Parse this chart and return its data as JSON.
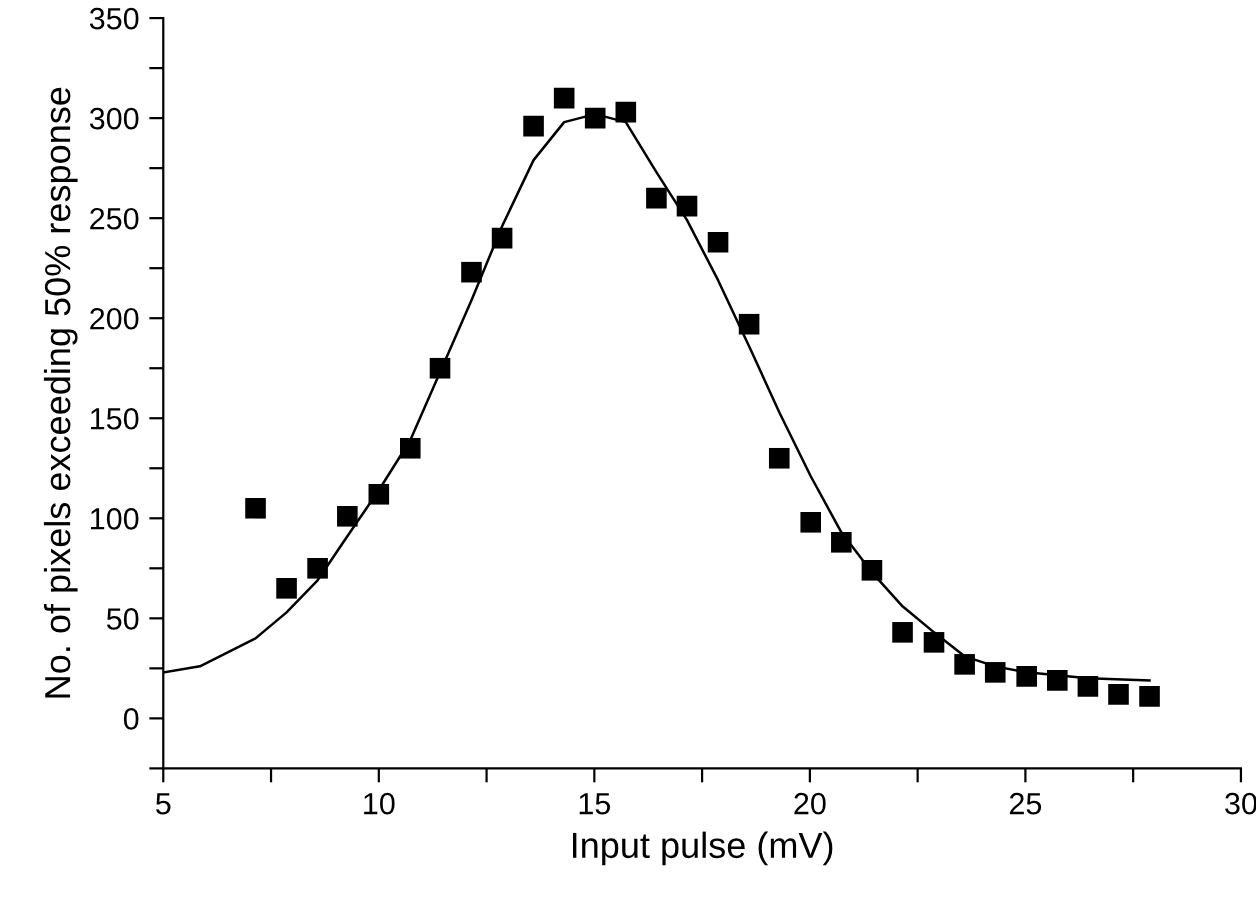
{
  "chart_data": {
    "type": "scatter",
    "xlabel": "Input pulse (mV)",
    "ylabel": "No. of pixels exceeding 50% response",
    "xlim": [
      5,
      30
    ],
    "ylim": [
      -25,
      350
    ],
    "xticks": [
      5,
      {
        "value": 7.5,
        "label": null
      },
      10,
      {
        "value": 12.5,
        "label": null
      },
      15,
      {
        "value": 17.5,
        "label": null
      },
      20,
      {
        "value": 22.5,
        "label": null
      },
      25,
      {
        "value": 27.5,
        "label": null
      },
      30
    ],
    "yticks": [
      {
        "value": -25,
        "label": null
      },
      0,
      {
        "value": 25,
        "label": null
      },
      50,
      {
        "value": 75,
        "label": null
      },
      100,
      {
        "value": 125,
        "label": null
      },
      150,
      {
        "value": 175,
        "label": null
      },
      200,
      {
        "value": 225,
        "label": null
      },
      250,
      {
        "value": 275,
        "label": null
      },
      300,
      {
        "value": 325,
        "label": null
      },
      350
    ],
    "grid": false,
    "legend": false,
    "series": [
      {
        "color": "#000000",
        "marker": "square",
        "x": [
          7.14,
          7.86,
          8.58,
          9.27,
          10.0,
          10.73,
          11.42,
          12.15,
          12.86,
          13.59,
          14.3,
          15.02,
          15.73,
          16.44,
          17.15,
          17.87,
          18.59,
          19.29,
          20.02,
          20.73,
          21.44,
          22.15,
          22.88,
          23.59,
          24.3,
          25.03,
          25.74,
          26.45,
          27.16,
          27.88
        ],
        "values": [
          105,
          65,
          75,
          101,
          112,
          135,
          175,
          223,
          240,
          296,
          310,
          300,
          303,
          260,
          256,
          238,
          197,
          130,
          98,
          88,
          74,
          43,
          38,
          27,
          23,
          21,
          19,
          16,
          12,
          11
        ]
      },
      {
        "type": "line",
        "color": "#000000",
        "marker": "none",
        "line_style": "solid",
        "x": [
          5,
          5.85,
          7.14,
          7.86,
          8.58,
          9.27,
          10.0,
          10.73,
          11.42,
          12.15,
          12.86,
          13.59,
          14.3,
          15.02,
          15.73,
          16.44,
          17.15,
          17.87,
          18.59,
          19.29,
          20.02,
          20.73,
          21.44,
          22.15,
          22.88,
          23.59,
          24.3,
          25.03,
          26.45,
          27.88
        ],
        "values": [
          23,
          26,
          40,
          53,
          69,
          91,
          114,
          139,
          173,
          209,
          246,
          279,
          298,
          302,
          298,
          273,
          249,
          219,
          186,
          153,
          121,
          93,
          73,
          56,
          43,
          31,
          26,
          23,
          20,
          19
        ]
      }
    ]
  }
}
